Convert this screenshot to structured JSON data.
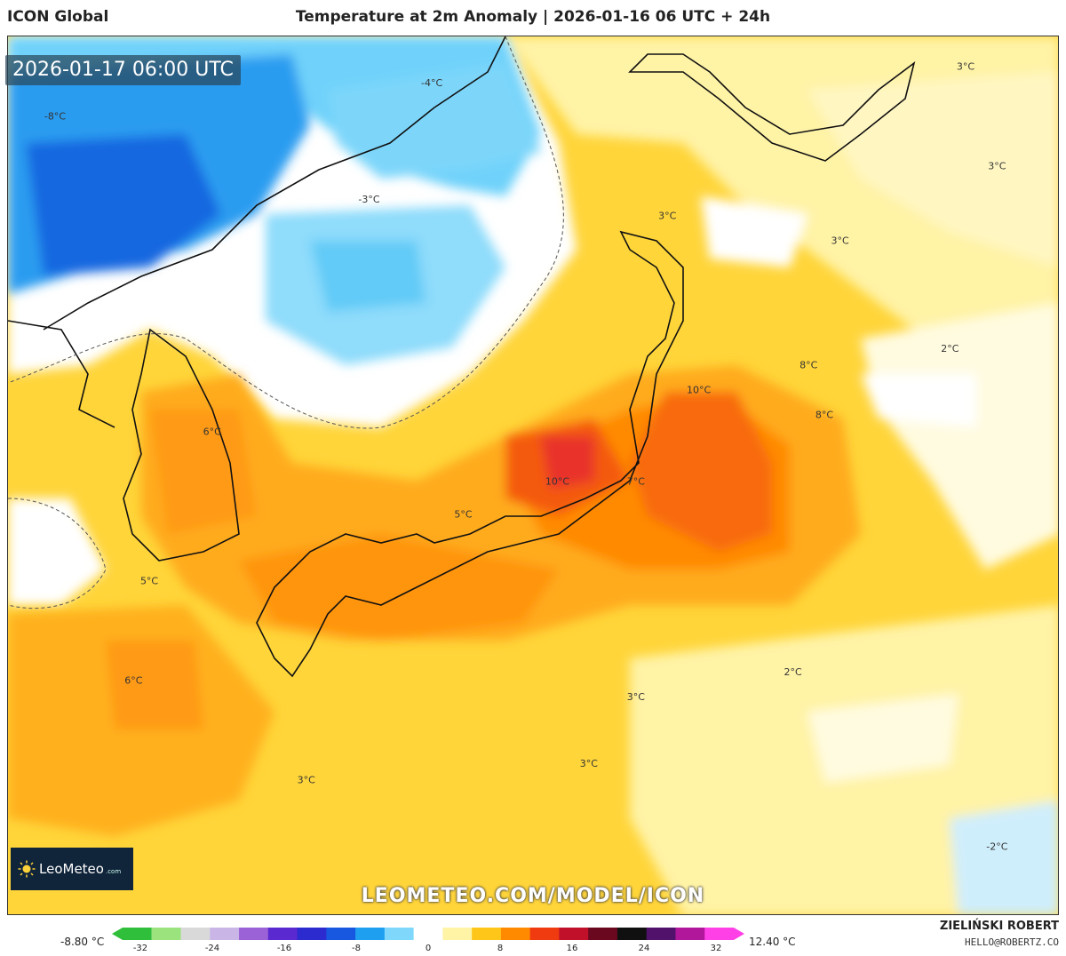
{
  "header": {
    "model": "ICON Global",
    "title": "Temperature at 2m Anomaly | 2026-01-16 06 UTC + 24h"
  },
  "timestamp": "2026-01-17 06:00 UTC",
  "logo": {
    "name": "LeoMeteo",
    "suffix": ".com",
    "icon": "sun-icon"
  },
  "watermark": "LEOMETEO.COM/MODEL/ICON",
  "author": {
    "name": "ZIELIŃSKI ROBERT",
    "email": "HELLO@ROBERTZ.CO"
  },
  "colorbar": {
    "min_label": "-8.80 °C",
    "max_label": "12.40 °C",
    "ticks": [
      "-32",
      "-24",
      "-16",
      "-8",
      "0",
      "8",
      "16",
      "24",
      "32"
    ],
    "colors": [
      "#2fbf3a",
      "#9be37c",
      "#d9d9d9",
      "#c9b6e6",
      "#9a62d6",
      "#5a2ad0",
      "#2b2bd0",
      "#1858e0",
      "#1f9ff0",
      "#7fd8fb",
      "#ffffff",
      "#fff3a6",
      "#ffc61a",
      "#ff8a00",
      "#f03a10",
      "#c0102a",
      "#6a0820",
      "#101010",
      "#50126a",
      "#b0179a",
      "#ff40e6"
    ]
  },
  "map": {
    "labels": [
      {
        "text": "-8°C",
        "lon": 98,
        "lat": 51
      },
      {
        "text": "-4°C",
        "lon": 122,
        "lat": 53
      },
      {
        "text": "-3°C",
        "lon": 118,
        "lat": 46
      },
      {
        "text": "3°C",
        "lon": 156,
        "lat": 54
      },
      {
        "text": "3°C",
        "lon": 158,
        "lat": 48
      },
      {
        "text": "3°C",
        "lon": 137,
        "lat": 45
      },
      {
        "text": "3°C",
        "lon": 148,
        "lat": 43.5
      },
      {
        "text": "2°C",
        "lon": 155,
        "lat": 37
      },
      {
        "text": "8°C",
        "lon": 146,
        "lat": 36
      },
      {
        "text": "8°C",
        "lon": 147,
        "lat": 33
      },
      {
        "text": "10°C",
        "lon": 139,
        "lat": 34.5
      },
      {
        "text": "6°C",
        "lon": 108,
        "lat": 32
      },
      {
        "text": "10°C",
        "lon": 130,
        "lat": 29
      },
      {
        "text": "7°C",
        "lon": 135,
        "lat": 29
      },
      {
        "text": "5°C",
        "lon": 124,
        "lat": 27
      },
      {
        "text": "5°C",
        "lon": 104,
        "lat": 23
      },
      {
        "text": "6°C",
        "lon": 103,
        "lat": 17
      },
      {
        "text": "3°C",
        "lon": 135,
        "lat": 16
      },
      {
        "text": "2°C",
        "lon": 145,
        "lat": 17.5
      },
      {
        "text": "3°C",
        "lon": 132,
        "lat": 12
      },
      {
        "text": "3°C",
        "lon": 114,
        "lat": 11
      },
      {
        "text": "-2°C",
        "lon": 158,
        "lat": 7
      }
    ]
  }
}
